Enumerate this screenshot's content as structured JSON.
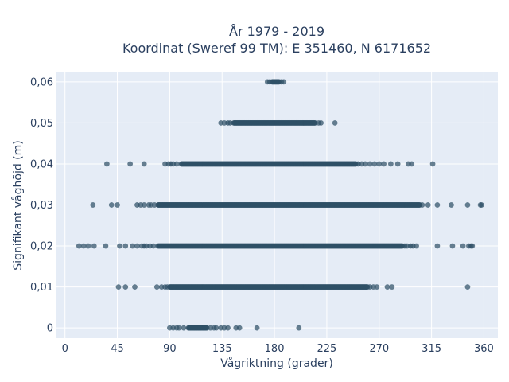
{
  "chart_data": {
    "type": "scatter",
    "title_line1": "År 1979 - 2019",
    "title_line2": "Koordinat (Sweref 99 TM): E 351460, N 6171652",
    "xlabel": "Vågriktning (grader)",
    "ylabel": "Signifikant våghöjd (m)",
    "xlim": [
      -8,
      372
    ],
    "ylim": [
      -0.0025,
      0.0625
    ],
    "xticks": [
      0,
      45,
      90,
      135,
      180,
      225,
      270,
      315,
      360
    ],
    "xtick_labels": [
      "0",
      "45",
      "90",
      "135",
      "180",
      "225",
      "270",
      "315",
      "360"
    ],
    "yticks": [
      0,
      0.01,
      0.02,
      0.03,
      0.04,
      0.05,
      0.06
    ],
    "ytick_labels": [
      "0",
      "0,01",
      "0,02",
      "0,03",
      "0,04",
      "0,05",
      "0,06"
    ],
    "grid": true,
    "background_color": "#e5ecf6",
    "marker_color": "#2f5166",
    "rows": [
      {
        "y": 0.06,
        "dense": [
          [
            178,
            184
          ]
        ],
        "sparse": [
          174,
          176,
          186,
          188
        ]
      },
      {
        "y": 0.05,
        "dense": [
          [
            145,
            215
          ]
        ],
        "sparse": [
          134,
          137,
          140,
          142,
          218,
          220,
          232
        ]
      },
      {
        "y": 0.04,
        "dense": [
          [
            100,
            250
          ]
        ],
        "sparse": [
          36,
          56,
          68,
          86,
          89,
          91,
          93,
          96,
          252,
          255,
          258,
          262,
          266,
          270,
          274,
          280,
          286,
          295,
          298,
          316
        ]
      },
      {
        "y": 0.03,
        "dense": [
          [
            80,
            305
          ]
        ],
        "sparse": [
          24,
          40,
          45,
          62,
          65,
          68,
          72,
          74,
          77,
          307,
          312,
          320,
          332,
          346,
          357,
          358
        ]
      },
      {
        "y": 0.02,
        "dense": [
          [
            80,
            290
          ]
        ],
        "sparse": [
          12,
          16,
          20,
          25,
          35,
          47,
          52,
          58,
          62,
          66,
          68,
          70,
          73,
          76,
          292,
          294,
          297,
          299,
          302,
          320,
          333,
          342,
          347,
          349,
          350
        ]
      },
      {
        "y": 0.01,
        "dense": [
          [
            90,
            260
          ]
        ],
        "sparse": [
          46,
          52,
          60,
          79,
          83,
          86,
          88,
          262,
          265,
          268,
          277,
          281,
          346
        ]
      },
      {
        "y": 0,
        "dense": [
          [
            106,
            122
          ]
        ],
        "sparse": [
          90,
          93,
          96,
          98,
          102,
          125,
          128,
          130,
          134,
          137,
          140,
          147,
          150,
          165,
          201
        ]
      }
    ]
  }
}
